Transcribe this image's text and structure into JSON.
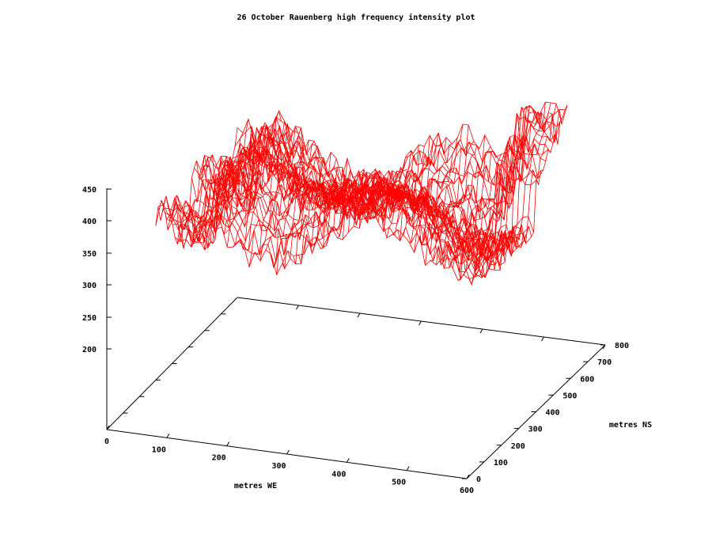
{
  "chart_data": {
    "type": "surface-3d",
    "title": "26 October Rauenberg high frequency intensity plot",
    "xlabel": "metres WE",
    "ylabel": "metres NS",
    "zlabel": "",
    "xlim": [
      0,
      600
    ],
    "ylim": [
      0,
      800
    ],
    "zlim": [
      200,
      450
    ],
    "x_ticks": [
      "0",
      "100",
      "200",
      "300",
      "400",
      "500",
      "600"
    ],
    "y_ticks": [
      "0",
      "100",
      "200",
      "300",
      "400",
      "500",
      "600",
      "700",
      "800"
    ],
    "z_ticks": [
      "200",
      "250",
      "300",
      "350",
      "400",
      "450"
    ],
    "surface_color": "#ff0000",
    "grid": false,
    "x_extent": [
      0,
      550
    ],
    "y_extent": [
      300,
      800
    ],
    "z_range_observed": [
      245,
      445
    ]
  }
}
